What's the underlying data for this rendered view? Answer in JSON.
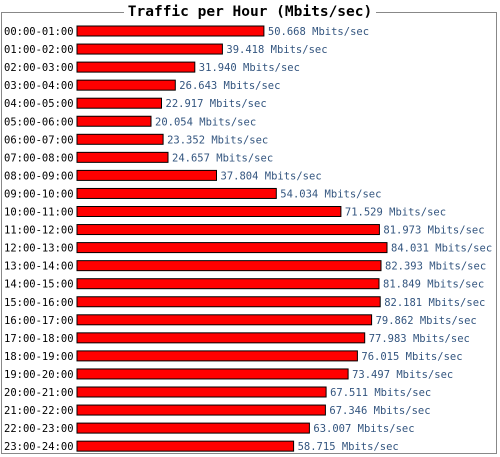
{
  "chart_data": {
    "type": "bar",
    "orientation": "horizontal",
    "title": "Traffic per Hour (Mbits/sec)",
    "unit": "Mbits/sec",
    "bar_color": "#ff0000",
    "bar_outline_color": "#000000",
    "value_label_color": "#33557f",
    "categories": [
      "00:00-01:00",
      "01:00-02:00",
      "02:00-03:00",
      "03:00-04:00",
      "04:00-05:00",
      "05:00-06:00",
      "06:00-07:00",
      "07:00-08:00",
      "08:00-09:00",
      "09:00-10:00",
      "10:00-11:00",
      "11:00-12:00",
      "12:00-13:00",
      "13:00-14:00",
      "14:00-15:00",
      "15:00-16:00",
      "16:00-17:00",
      "17:00-18:00",
      "18:00-19:00",
      "19:00-20:00",
      "20:00-21:00",
      "21:00-22:00",
      "22:00-23:00",
      "23:00-24:00"
    ],
    "values": [
      50.668,
      39.418,
      31.94,
      26.643,
      22.917,
      20.054,
      23.352,
      24.657,
      37.804,
      54.034,
      71.529,
      81.973,
      84.031,
      82.393,
      81.849,
      82.181,
      79.862,
      77.983,
      76.015,
      73.497,
      67.511,
      67.346,
      63.007,
      58.715
    ],
    "value_labels": [
      "50.668 Mbits/sec",
      "39.418 Mbits/sec",
      "31.940 Mbits/sec",
      "26.643 Mbits/sec",
      "22.917 Mbits/sec",
      "20.054 Mbits/sec",
      "23.352 Mbits/sec",
      "24.657 Mbits/sec",
      "37.804 Mbits/sec",
      "54.034 Mbits/sec",
      "71.529 Mbits/sec",
      "81.973 Mbits/sec",
      "84.031 Mbits/sec",
      "82.393 Mbits/sec",
      "81.849 Mbits/sec",
      "82.181 Mbits/sec",
      "79.862 Mbits/sec",
      "77.983 Mbits/sec",
      "76.015 Mbits/sec",
      "73.497 Mbits/sec",
      "67.511 Mbits/sec",
      "67.346 Mbits/sec",
      "63.007 Mbits/sec",
      "58.715 Mbits/sec"
    ],
    "xlim": [
      0,
      84.031
    ],
    "grid": false
  }
}
